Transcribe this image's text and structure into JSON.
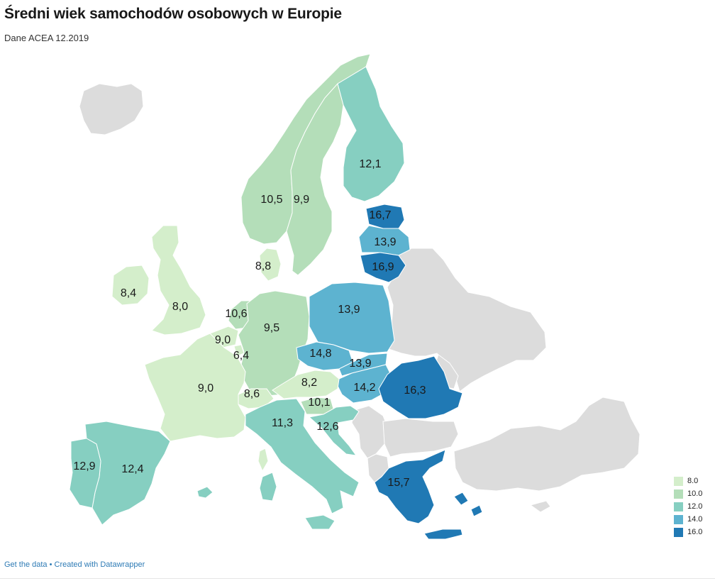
{
  "header": {
    "title": "Średni wiek samochodów osobowych w Europie",
    "subtitle": "Dane ACEA 12.2019"
  },
  "colors": {
    "no_data": "#dcdcdc",
    "scale": [
      "#d4eecb",
      "#b4deb9",
      "#86cfc1",
      "#5db3d0",
      "#2079b4"
    ]
  },
  "legend": {
    "items": [
      {
        "label": "8.0",
        "color": "#d4eecb"
      },
      {
        "label": "10.0",
        "color": "#b4deb9"
      },
      {
        "label": "12.0",
        "color": "#86cfc1"
      },
      {
        "label": "14.0",
        "color": "#5db3d0"
      },
      {
        "label": "16.0",
        "color": "#2079b4"
      }
    ]
  },
  "map": {
    "countries": [
      {
        "id": "finland",
        "value": 12.1,
        "label": "12,1",
        "color": "#86cfc1"
      },
      {
        "id": "sweden",
        "value": 9.9,
        "label": "9,9",
        "color": "#b4deb9"
      },
      {
        "id": "norway",
        "value": 10.5,
        "label": "10,5",
        "color": "#b4deb9"
      },
      {
        "id": "estonia",
        "value": 16.7,
        "label": "16,7",
        "color": "#2079b4"
      },
      {
        "id": "latvia",
        "value": 13.9,
        "label": "13,9",
        "color": "#5db3d0"
      },
      {
        "id": "lithuania",
        "value": 16.9,
        "label": "16,9",
        "color": "#2079b4"
      },
      {
        "id": "denmark",
        "value": 8.8,
        "label": "8,8",
        "color": "#d4eecb"
      },
      {
        "id": "ireland",
        "value": 8.4,
        "label": "8,4",
        "color": "#d4eecb"
      },
      {
        "id": "united-kingdom",
        "value": 8.0,
        "label": "8,0",
        "color": "#d4eecb"
      },
      {
        "id": "netherlands",
        "value": 10.6,
        "label": "10,6",
        "color": "#b4deb9"
      },
      {
        "id": "belgium",
        "value": 9.0,
        "label": "9,0",
        "color": "#d4eecb"
      },
      {
        "id": "luxembourg",
        "value": 6.4,
        "label": "6,4",
        "color": "#d4eecb"
      },
      {
        "id": "germany",
        "value": 9.5,
        "label": "9,5",
        "color": "#b4deb9"
      },
      {
        "id": "poland",
        "value": 13.9,
        "label": "13,9",
        "color": "#5db3d0"
      },
      {
        "id": "czechia",
        "value": 14.8,
        "label": "14,8",
        "color": "#5db3d0"
      },
      {
        "id": "slovakia",
        "value": 13.9,
        "label": "13,9",
        "color": "#5db3d0"
      },
      {
        "id": "hungary",
        "value": 14.2,
        "label": "14,2",
        "color": "#5db3d0"
      },
      {
        "id": "romania",
        "value": 16.3,
        "label": "16,3",
        "color": "#2079b4"
      },
      {
        "id": "austria",
        "value": 8.2,
        "label": "8,2",
        "color": "#d4eecb"
      },
      {
        "id": "switzerland",
        "value": 8.6,
        "label": "8,6",
        "color": "#d4eecb"
      },
      {
        "id": "france",
        "value": 9.0,
        "label": "9,0",
        "color": "#d4eecb"
      },
      {
        "id": "slovenia",
        "value": 10.1,
        "label": "10,1",
        "color": "#b4deb9"
      },
      {
        "id": "croatia",
        "value": 12.6,
        "label": "12,6",
        "color": "#86cfc1"
      },
      {
        "id": "italy",
        "value": 11.3,
        "label": "11,3",
        "color": "#86cfc1"
      },
      {
        "id": "spain",
        "value": 12.4,
        "label": "12,4",
        "color": "#86cfc1"
      },
      {
        "id": "portugal",
        "value": 12.9,
        "label": "12,9",
        "color": "#86cfc1"
      },
      {
        "id": "greece",
        "value": 15.7,
        "label": "15,7",
        "color": "#2079b4"
      }
    ]
  },
  "footer": {
    "get_data": "Get the data",
    "separator": "•",
    "created_with": "Created with Datawrapper"
  }
}
